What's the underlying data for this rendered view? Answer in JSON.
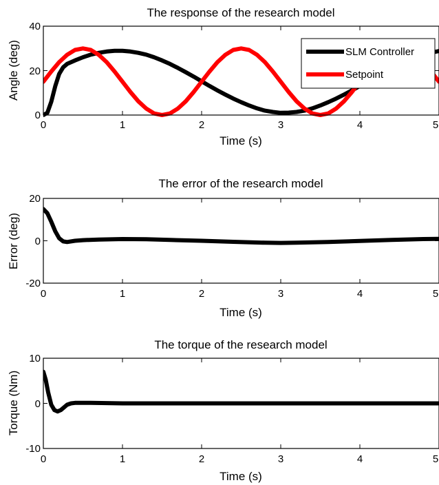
{
  "colors": {
    "controller": "#000000",
    "setpoint": "#ff0000",
    "axes": "#000000"
  },
  "chart_data": [
    {
      "type": "line",
      "title": "The response of the research model",
      "xlabel": "Time (s)",
      "ylabel": "Angle (deg)",
      "xlim": [
        0,
        5
      ],
      "ylim": [
        0,
        40
      ],
      "xticks": [
        "0",
        "1",
        "2",
        "3",
        "4",
        "5"
      ],
      "yticks": [
        "0",
        "20",
        "40"
      ],
      "grid": false,
      "legend": {
        "placement": "top-right",
        "entries": [
          "SLM Controller",
          "Setpoint"
        ]
      },
      "series": [
        {
          "name": "SLM Controller",
          "color": "#000000",
          "x": [
            0,
            0.05,
            0.1,
            0.15,
            0.2,
            0.25,
            0.3,
            0.4,
            0.5,
            0.6,
            0.7,
            0.8,
            0.9,
            1.0,
            1.1,
            1.2,
            1.3,
            1.4,
            1.5,
            1.6,
            1.7,
            1.8,
            1.9,
            2.0,
            2.1,
            2.2,
            2.3,
            2.4,
            2.5,
            2.6,
            2.7,
            2.8,
            2.9,
            3.0,
            3.1,
            3.2,
            3.3,
            3.4,
            3.5,
            3.6,
            3.7,
            3.8,
            3.9,
            4.0,
            4.1,
            4.2,
            4.3,
            4.4,
            4.5,
            4.6,
            4.7,
            4.8,
            4.9,
            5.0
          ],
          "y": [
            0,
            1,
            6,
            13,
            18.5,
            21.5,
            23,
            24.6,
            26,
            27.2,
            28,
            28.6,
            28.9,
            28.9,
            28.6,
            28,
            27.2,
            26,
            24.6,
            23,
            21.2,
            19.3,
            17.3,
            15.2,
            13.1,
            11.1,
            9.2,
            7.4,
            5.8,
            4.3,
            3.0,
            2.0,
            1.4,
            1.0,
            1.1,
            1.4,
            2.0,
            3.0,
            4.3,
            5.8,
            7.4,
            9.2,
            11.1,
            13.1,
            15.2,
            17.3,
            19.3,
            21.2,
            23.0,
            24.6,
            26.0,
            27.2,
            28.1,
            28.8
          ]
        },
        {
          "name": "Setpoint",
          "color": "#ff0000",
          "x": [
            0,
            0.1,
            0.2,
            0.3,
            0.4,
            0.5,
            0.6,
            0.7,
            0.8,
            0.9,
            1.0,
            1.1,
            1.2,
            1.3,
            1.4,
            1.5,
            1.6,
            1.7,
            1.8,
            1.9,
            2.0,
            2.1,
            2.2,
            2.3,
            2.4,
            2.5,
            2.6,
            2.7,
            2.8,
            2.9,
            3.0,
            3.1,
            3.2,
            3.3,
            3.4,
            3.5,
            3.6,
            3.7,
            3.8,
            3.9,
            4.0,
            4.1,
            4.2,
            4.3,
            4.4,
            4.5,
            4.6,
            4.7,
            4.8,
            4.9,
            5.0
          ],
          "y": [
            15,
            19.6,
            23.8,
            27.1,
            29.3,
            30,
            29.3,
            27.1,
            23.8,
            19.6,
            15,
            10.4,
            6.2,
            2.9,
            0.7,
            0,
            0.7,
            2.9,
            6.2,
            10.4,
            15,
            19.6,
            23.8,
            27.1,
            29.3,
            30,
            29.3,
            27.1,
            23.8,
            19.6,
            15,
            10.4,
            6.2,
            2.9,
            0.7,
            0,
            0.7,
            2.9,
            6.2,
            10.4,
            15,
            19.6,
            23.8,
            27.1,
            29.3,
            30,
            29.3,
            27.1,
            23.8,
            19.6,
            15
          ]
        }
      ]
    },
    {
      "type": "line",
      "title": "The error of the research model",
      "xlabel": "Time (s)",
      "ylabel": "Error (deg)",
      "xlim": [
        0,
        5
      ],
      "ylim": [
        -20,
        20
      ],
      "xticks": [
        "0",
        "1",
        "2",
        "3",
        "4",
        "5"
      ],
      "yticks": [
        "-20",
        "0",
        "20"
      ],
      "grid": false,
      "series": [
        {
          "color": "#000000",
          "x": [
            0,
            0.05,
            0.1,
            0.15,
            0.2,
            0.25,
            0.3,
            0.4,
            0.5,
            0.7,
            1.0,
            1.3,
            1.6,
            2.0,
            2.4,
            2.8,
            3.0,
            3.2,
            3.6,
            4.0,
            4.4,
            4.8,
            5.0
          ],
          "y": [
            15,
            13,
            9,
            4.5,
            1.2,
            -0.3,
            -0.6,
            0,
            0.3,
            0.6,
            0.8,
            0.7,
            0.4,
            0,
            -0.5,
            -0.9,
            -1.0,
            -0.9,
            -0.6,
            -0.1,
            0.4,
            0.8,
            0.9
          ]
        }
      ]
    },
    {
      "type": "line",
      "title": "The torque of the research model",
      "xlabel": "Time (s)",
      "ylabel": "Torque (Nm)",
      "xlim": [
        0,
        5
      ],
      "ylim": [
        -10,
        10
      ],
      "xticks": [
        "0",
        "1",
        "2",
        "3",
        "4",
        "5"
      ],
      "yticks": [
        "-10",
        "0",
        "10"
      ],
      "grid": false,
      "series": [
        {
          "color": "#000000",
          "x": [
            0,
            0.03,
            0.06,
            0.1,
            0.14,
            0.18,
            0.22,
            0.26,
            0.3,
            0.35,
            0.4,
            0.6,
            1.0,
            2.0,
            3.0,
            4.0,
            5.0
          ],
          "y": [
            7,
            5.2,
            2.5,
            -0.3,
            -1.5,
            -1.8,
            -1.5,
            -0.9,
            -0.3,
            0,
            0.1,
            0.1,
            0,
            0,
            0,
            0,
            0
          ]
        }
      ]
    }
  ]
}
